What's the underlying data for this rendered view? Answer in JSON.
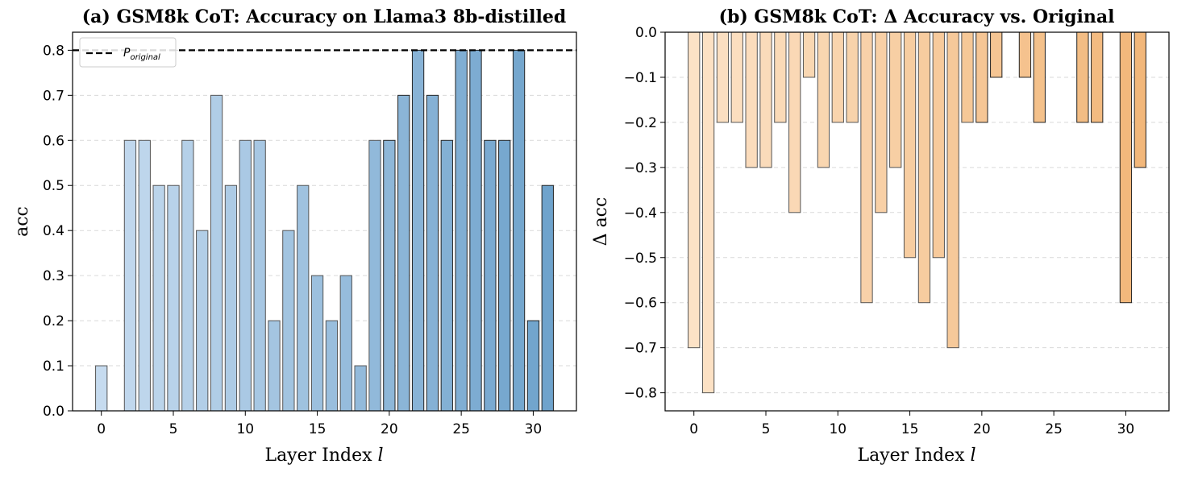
{
  "chart_data": [
    {
      "type": "bar",
      "title": "(a) GSM8k CoT: Accuracy on Llama3 8b-distilled",
      "xlabel": "Layer Index l",
      "xlabel_text": "Layer Index ",
      "xlabel_var": "l",
      "ylabel": "acc",
      "xlim": [
        -2,
        33
      ],
      "ylim": [
        0,
        0.84
      ],
      "xticks": [
        0,
        5,
        10,
        15,
        20,
        25,
        30
      ],
      "xtick_labels": [
        "0",
        "5",
        "10",
        "15",
        "20",
        "25",
        "30"
      ],
      "yticks": [
        0.0,
        0.1,
        0.2,
        0.3,
        0.4,
        0.5,
        0.6,
        0.7,
        0.8
      ],
      "ytick_labels": [
        "0.0",
        "0.1",
        "0.2",
        "0.3",
        "0.4",
        "0.5",
        "0.6",
        "0.7",
        "0.8"
      ],
      "grid": "y-dashed",
      "x": [
        0,
        1,
        2,
        3,
        4,
        5,
        6,
        7,
        8,
        9,
        10,
        11,
        12,
        13,
        14,
        15,
        16,
        17,
        18,
        19,
        20,
        21,
        22,
        23,
        24,
        25,
        26,
        27,
        28,
        29,
        30,
        31
      ],
      "values": [
        0.1,
        0.0,
        0.6,
        0.6,
        0.5,
        0.5,
        0.6,
        0.4,
        0.7,
        0.5,
        0.6,
        0.6,
        0.2,
        0.4,
        0.5,
        0.3,
        0.2,
        0.3,
        0.1,
        0.6,
        0.6,
        0.7,
        0.8,
        0.7,
        0.6,
        0.8,
        0.8,
        0.6,
        0.6,
        0.8,
        0.2,
        0.5
      ],
      "color_start": "#c6dbef",
      "color_end": "#6fa3cc",
      "reference_line": {
        "value": 0.8,
        "label_base": "P",
        "label_sub": "original",
        "style": "dashed",
        "color": "#000000"
      },
      "legend_position": "upper-left"
    },
    {
      "type": "bar",
      "title": "(b) GSM8k CoT: Δ Accuracy vs. Original",
      "xlabel": "Layer Index l",
      "xlabel_text": "Layer Index ",
      "xlabel_var": "l",
      "ylabel": "Δ acc",
      "xlim": [
        -2,
        33
      ],
      "ylim": [
        -0.84,
        0.0
      ],
      "xticks": [
        0,
        5,
        10,
        15,
        20,
        25,
        30
      ],
      "xtick_labels": [
        "0",
        "5",
        "10",
        "15",
        "20",
        "25",
        "30"
      ],
      "yticks": [
        0.0,
        -0.1,
        -0.2,
        -0.3,
        -0.4,
        -0.5,
        -0.6,
        -0.7,
        -0.8
      ],
      "ytick_labels": [
        "0.0",
        "−0.1",
        "−0.2",
        "−0.3",
        "−0.4",
        "−0.5",
        "−0.6",
        "−0.7",
        "−0.8"
      ],
      "grid": "y-dashed",
      "x": [
        0,
        1,
        2,
        3,
        4,
        5,
        6,
        7,
        8,
        9,
        10,
        11,
        12,
        13,
        14,
        15,
        16,
        17,
        18,
        19,
        20,
        21,
        22,
        23,
        24,
        25,
        26,
        27,
        28,
        29,
        30,
        31
      ],
      "values": [
        -0.7,
        -0.8,
        -0.2,
        -0.2,
        -0.3,
        -0.3,
        -0.2,
        -0.4,
        -0.1,
        -0.3,
        -0.2,
        -0.2,
        -0.6,
        -0.4,
        -0.3,
        -0.5,
        -0.6,
        -0.5,
        -0.7,
        -0.2,
        -0.2,
        -0.1,
        0.0,
        -0.1,
        -0.2,
        0.0,
        0.0,
        -0.2,
        -0.2,
        0.0,
        -0.6,
        -0.3
      ],
      "color_start": "#fce2c6",
      "color_end": "#f2b77a"
    }
  ]
}
